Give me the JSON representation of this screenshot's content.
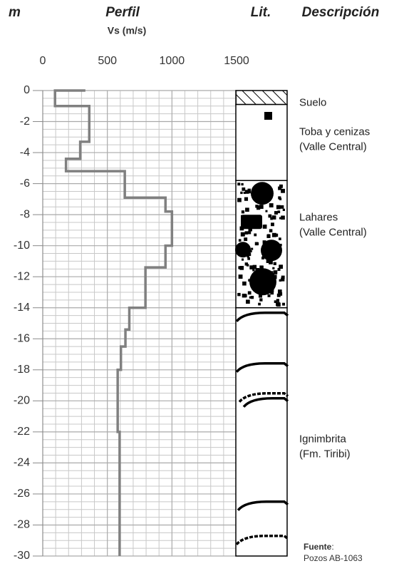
{
  "chart_data": {
    "type": "line",
    "depth_label": "m",
    "title": "Perfil",
    "x_label": "Vs (m/s)",
    "lithology_label": "Lit.",
    "description_label": "Descripción",
    "xlim": [
      0,
      1500
    ],
    "xticks": [
      0,
      500,
      1000,
      1500
    ],
    "ylim": [
      -30,
      0
    ],
    "yticks": [
      0,
      -2,
      -4,
      -6,
      -8,
      -10,
      -12,
      -14,
      -16,
      -18,
      -20,
      -22,
      -24,
      -26,
      -28,
      -30
    ],
    "grid": true,
    "minor_xticks": [
      100,
      200,
      300,
      400,
      600,
      700,
      800,
      900,
      1100,
      1200,
      1300,
      1400
    ],
    "minor_yticks": [
      -0.5,
      -1,
      -1.5,
      -2.5,
      -3,
      -3.5,
      -4.5,
      -5,
      -5.5,
      -6.5,
      -7,
      -7.5,
      -8.5,
      -9,
      -9.5,
      -10.5,
      -11,
      -11.5,
      -12.5,
      -13,
      -13.5,
      -14.5,
      -15,
      -15.5,
      -16.5,
      -17,
      -17.5,
      -18.5,
      -19,
      -19.5,
      -20.5,
      -21,
      -21.5,
      -22.5,
      -23,
      -23.5,
      -24.5,
      -25,
      -25.5,
      -26.5,
      -27,
      -27.5,
      -28.5,
      -29,
      -29.5
    ],
    "color": "#808080",
    "x": [
      330,
      95,
      95,
      360,
      360,
      290,
      290,
      180,
      180,
      635,
      635,
      950,
      950,
      1000,
      1000,
      950,
      950,
      795,
      795,
      670,
      670,
      640,
      640,
      605,
      605,
      580,
      580,
      595,
      595
    ],
    "y": [
      0,
      0,
      -1,
      -1,
      -3.3,
      -3.3,
      -4.4,
      -4.4,
      -5.2,
      -5.2,
      -6.9,
      -6.9,
      -7.8,
      -7.8,
      -10,
      -10,
      -11.4,
      -11.4,
      -14,
      -14,
      -15.4,
      -15.4,
      -16.5,
      -16.5,
      -18,
      -18,
      -22,
      -22,
      -30
    ],
    "lithology": [
      {
        "top": 0,
        "bottom": -0.9,
        "pattern": "hatch"
      },
      {
        "top": -0.9,
        "bottom": -5.8,
        "pattern": "blank"
      },
      {
        "top": -5.8,
        "bottom": -14,
        "pattern": "blocks"
      },
      {
        "top": -14,
        "bottom": -30,
        "pattern": "arcs"
      }
    ],
    "descriptions": [
      {
        "lines": [
          "Suelo"
        ],
        "depth": -0.8
      },
      {
        "lines": [
          "Toba y cenizas",
          "(Valle Central)"
        ],
        "depth": -2.7
      },
      {
        "lines": [
          "Lahares",
          "(Valle Central)"
        ],
        "depth": -8.2
      },
      {
        "lines": [
          "Ignimbrita",
          "(Fm. Tiribi)"
        ],
        "depth": -22.5
      }
    ],
    "source": {
      "label": "Fuente",
      "separator": ":",
      "text": "Pozos AB-1063"
    }
  }
}
